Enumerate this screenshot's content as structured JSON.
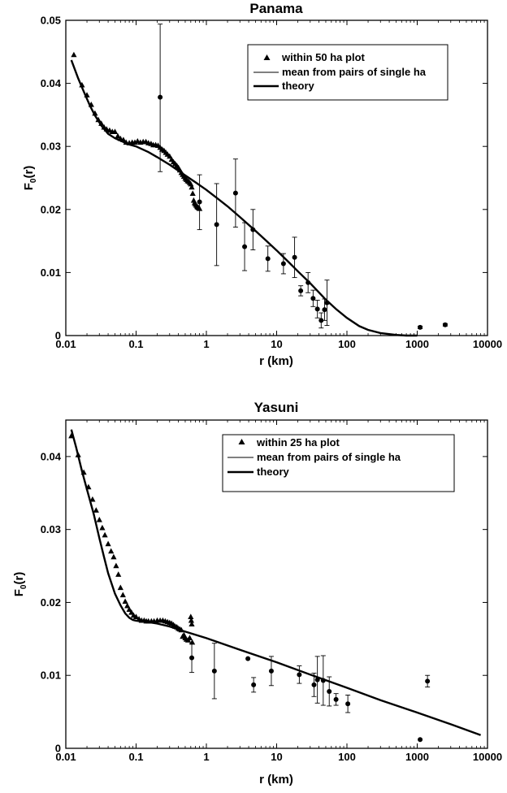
{
  "chart_data": [
    {
      "type": "scatter",
      "title": "Panama",
      "xlabel": "r (km)",
      "ylabel_main": "F",
      "ylabel_sub": "0",
      "ylabel_tail": "(r)",
      "xscale": "log",
      "xlim": [
        0.01,
        10000
      ],
      "ylim": [
        0,
        0.05
      ],
      "x_ticks": [
        0.01,
        0.1,
        1,
        10,
        100,
        1000,
        10000
      ],
      "x_tick_labels": [
        "0.01",
        "0.1",
        "1",
        "10",
        "100",
        "1000",
        "10000"
      ],
      "y_ticks": [
        0,
        0.01,
        0.02,
        0.03,
        0.04,
        0.05
      ],
      "y_tick_labels": [
        "0",
        "0.01",
        "0.02",
        "0.03",
        "0.04",
        "0.05"
      ],
      "grid": false,
      "legend_position": "top-right",
      "legend": [
        {
          "label": "within 50 ha plot",
          "marker": "triangle"
        },
        {
          "label": "mean from pairs of single ha",
          "marker": "thin-line"
        },
        {
          "label": "theory",
          "marker": "thick-line"
        }
      ],
      "within_plot": {
        "x": [
          0.013,
          0.017,
          0.02,
          0.023,
          0.026,
          0.029,
          0.032,
          0.035,
          0.038,
          0.042,
          0.046,
          0.05,
          0.055,
          0.06,
          0.066,
          0.072,
          0.08,
          0.088,
          0.096,
          0.105,
          0.115,
          0.126,
          0.138,
          0.15,
          0.163,
          0.176,
          0.19,
          0.205,
          0.22,
          0.235,
          0.25,
          0.265,
          0.28,
          0.3,
          0.32,
          0.34,
          0.36,
          0.38,
          0.4,
          0.42,
          0.44,
          0.46,
          0.48,
          0.5,
          0.52,
          0.54,
          0.56,
          0.58,
          0.6,
          0.62,
          0.64,
          0.66,
          0.68,
          0.7,
          0.72,
          0.74,
          0.76,
          0.78,
          0.8
        ],
        "y": [
          0.0445,
          0.0397,
          0.0381,
          0.0366,
          0.0352,
          0.0342,
          0.0336,
          0.033,
          0.0327,
          0.0325,
          0.0323,
          0.0323,
          0.0316,
          0.0312,
          0.031,
          0.0306,
          0.0305,
          0.0306,
          0.0306,
          0.0308,
          0.0306,
          0.0307,
          0.0307,
          0.0305,
          0.0304,
          0.0302,
          0.0302,
          0.0301,
          0.0298,
          0.0295,
          0.0293,
          0.029,
          0.0287,
          0.0284,
          0.0279,
          0.0275,
          0.0272,
          0.0269,
          0.0266,
          0.0262,
          0.0258,
          0.0255,
          0.0252,
          0.0249,
          0.0247,
          0.0245,
          0.0244,
          0.0242,
          0.024,
          0.0235,
          0.0225,
          0.0214,
          0.021,
          0.0208,
          0.0206,
          0.0204,
          0.0203,
          0.0202,
          0.0201
        ]
      },
      "pairs_mean": [
        {
          "x": 0.22,
          "y": 0.0378,
          "lo": 0.026,
          "hi": 0.0494
        },
        {
          "x": 0.8,
          "y": 0.0212,
          "lo": 0.0168,
          "hi": 0.0255
        },
        {
          "x": 1.4,
          "y": 0.0176,
          "lo": 0.0111,
          "hi": 0.0241
        },
        {
          "x": 2.6,
          "y": 0.0226,
          "lo": 0.0172,
          "hi": 0.028
        },
        {
          "x": 3.5,
          "y": 0.0141,
          "lo": 0.0103,
          "hi": 0.0179
        },
        {
          "x": 4.6,
          "y": 0.0168,
          "lo": 0.0136,
          "hi": 0.02
        },
        {
          "x": 7.5,
          "y": 0.0122,
          "lo": 0.0102,
          "hi": 0.0142
        },
        {
          "x": 12.5,
          "y": 0.0114,
          "lo": 0.0098,
          "hi": 0.013
        },
        {
          "x": 18,
          "y": 0.0124,
          "lo": 0.0092,
          "hi": 0.0156
        },
        {
          "x": 22,
          "y": 0.0071,
          "lo": 0.0063,
          "hi": 0.0079
        },
        {
          "x": 28,
          "y": 0.0084,
          "lo": 0.0068,
          "hi": 0.01
        },
        {
          "x": 33,
          "y": 0.0059,
          "lo": 0.0046,
          "hi": 0.0072
        },
        {
          "x": 38,
          "y": 0.0042,
          "lo": 0.0028,
          "hi": 0.0056
        },
        {
          "x": 43,
          "y": 0.0024,
          "lo": 0.0012,
          "hi": 0.0036
        },
        {
          "x": 48,
          "y": 0.0041,
          "lo": 0.0024,
          "hi": 0.0058
        },
        {
          "x": 52,
          "y": 0.0052,
          "lo": 0.0016,
          "hi": 0.0088
        },
        {
          "x": 1100,
          "y": 0.0013,
          "lo": 0.0011,
          "hi": 0.0015
        },
        {
          "x": 2500,
          "y": 0.0017,
          "lo": 0.0015,
          "hi": 0.0019
        }
      ],
      "theory": {
        "x": [
          0.012,
          0.015,
          0.018,
          0.022,
          0.026,
          0.032,
          0.04,
          0.05,
          0.06,
          0.08,
          0.1,
          0.15,
          0.2,
          0.3,
          0.5,
          0.7,
          1,
          1.5,
          2,
          3,
          5,
          7,
          10,
          15,
          20,
          30,
          50,
          70,
          100,
          150,
          200,
          300,
          500,
          700,
          1000
        ],
        "y": [
          0.0437,
          0.0408,
          0.0387,
          0.0365,
          0.0349,
          0.0333,
          0.032,
          0.0313,
          0.0309,
          0.0303,
          0.03,
          0.0291,
          0.0283,
          0.0271,
          0.0254,
          0.0243,
          0.0231,
          0.0216,
          0.0205,
          0.0188,
          0.0166,
          0.0151,
          0.0135,
          0.0116,
          0.0102,
          0.0083,
          0.0057,
          0.0042,
          0.0028,
          0.0015,
          0.0009,
          0.0004,
          0.0001,
          0,
          0
        ]
      }
    },
    {
      "type": "scatter",
      "title": "Yasuni",
      "xlabel": "r (km)",
      "ylabel_main": "F",
      "ylabel_sub": "0",
      "ylabel_tail": "(r)",
      "xscale": "log",
      "xlim": [
        0.01,
        10000
      ],
      "ylim": [
        0,
        0.045
      ],
      "x_ticks": [
        0.01,
        0.1,
        1,
        10,
        100,
        1000,
        10000
      ],
      "x_tick_labels": [
        "0.01",
        "0.1",
        "1",
        "10",
        "100",
        "1000",
        "10000"
      ],
      "y_ticks": [
        0,
        0.01,
        0.02,
        0.03,
        0.04
      ],
      "y_tick_labels": [
        "0",
        "0.01",
        "0.02",
        "0.03",
        "0.04"
      ],
      "grid": false,
      "legend_position": "top-right",
      "legend": [
        {
          "label": "within 25 ha plot",
          "marker": "triangle"
        },
        {
          "label": "mean from pairs of single ha",
          "marker": "thin-line"
        },
        {
          "label": "theory",
          "marker": "thick-line"
        }
      ],
      "within_plot": {
        "x": [
          0.012,
          0.015,
          0.018,
          0.021,
          0.024,
          0.027,
          0.03,
          0.033,
          0.036,
          0.04,
          0.044,
          0.048,
          0.052,
          0.056,
          0.06,
          0.065,
          0.07,
          0.075,
          0.08,
          0.086,
          0.092,
          0.1,
          0.11,
          0.12,
          0.13,
          0.14,
          0.15,
          0.165,
          0.18,
          0.2,
          0.22,
          0.24,
          0.26,
          0.28,
          0.3,
          0.32,
          0.34,
          0.36,
          0.38,
          0.4,
          0.42,
          0.44,
          0.46,
          0.48,
          0.5,
          0.52,
          0.55,
          0.58,
          0.6,
          0.61,
          0.62,
          0.63
        ],
        "y": [
          0.0428,
          0.0402,
          0.0378,
          0.0358,
          0.0341,
          0.0326,
          0.0313,
          0.0302,
          0.0292,
          0.028,
          0.027,
          0.0262,
          0.025,
          0.0238,
          0.022,
          0.021,
          0.0201,
          0.0195,
          0.019,
          0.0186,
          0.0182,
          0.018,
          0.0177,
          0.0175,
          0.0175,
          0.0174,
          0.0174,
          0.0174,
          0.0174,
          0.0175,
          0.0175,
          0.0175,
          0.0174,
          0.0173,
          0.0172,
          0.0171,
          0.0169,
          0.0167,
          0.0166,
          0.0164,
          0.0163,
          0.0162,
          0.0153,
          0.0155,
          0.0151,
          0.0149,
          0.0148,
          0.0151,
          0.018,
          0.0175,
          0.017,
          0.0145
        ]
      },
      "pairs_mean": [
        {
          "x": 0.62,
          "y": 0.0124,
          "lo": 0.0104,
          "hi": 0.0144
        },
        {
          "x": 1.3,
          "y": 0.0106,
          "lo": 0.0068,
          "hi": 0.0144
        },
        {
          "x": 3.9,
          "y": 0.0123,
          "lo": 0.0123,
          "hi": 0.0123
        },
        {
          "x": 4.7,
          "y": 0.0087,
          "lo": 0.0077,
          "hi": 0.0097
        },
        {
          "x": 8.4,
          "y": 0.0106,
          "lo": 0.0086,
          "hi": 0.0126
        },
        {
          "x": 21,
          "y": 0.0101,
          "lo": 0.0089,
          "hi": 0.0113
        },
        {
          "x": 34,
          "y": 0.0087,
          "lo": 0.0071,
          "hi": 0.0103
        },
        {
          "x": 38,
          "y": 0.0094,
          "lo": 0.0062,
          "hi": 0.0126
        },
        {
          "x": 46,
          "y": 0.0093,
          "lo": 0.0059,
          "hi": 0.0127
        },
        {
          "x": 56,
          "y": 0.0078,
          "lo": 0.0058,
          "hi": 0.0098
        },
        {
          "x": 70,
          "y": 0.0067,
          "lo": 0.0059,
          "hi": 0.0075
        },
        {
          "x": 103,
          "y": 0.0061,
          "lo": 0.0049,
          "hi": 0.0073
        },
        {
          "x": 1100,
          "y": 0.0012,
          "lo": 0.0012,
          "hi": 0.0012
        },
        {
          "x": 1400,
          "y": 0.0092,
          "lo": 0.0084,
          "hi": 0.01
        }
      ],
      "theory": {
        "x": [
          0.012,
          0.014,
          0.017,
          0.02,
          0.025,
          0.03,
          0.035,
          0.04,
          0.05,
          0.06,
          0.07,
          0.08,
          0.09,
          0.1,
          0.12,
          0.15,
          0.2,
          0.3,
          0.5,
          1,
          3,
          10,
          30,
          100,
          300,
          1000,
          3000,
          8000
        ],
        "y": [
          0.0437,
          0.0413,
          0.038,
          0.0355,
          0.0321,
          0.0288,
          0.0262,
          0.024,
          0.0212,
          0.0196,
          0.0185,
          0.0179,
          0.0176,
          0.0175,
          0.0174,
          0.0173,
          0.0171,
          0.0167,
          0.016,
          0.0151,
          0.0135,
          0.0118,
          0.0101,
          0.0083,
          0.0066,
          0.0049,
          0.0033,
          0.0018
        ]
      }
    }
  ]
}
